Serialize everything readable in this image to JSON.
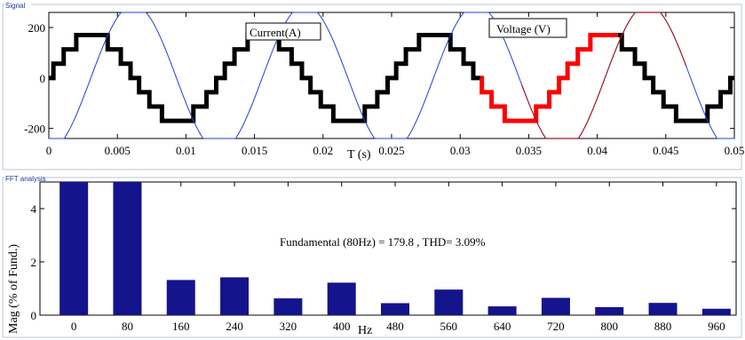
{
  "signal_panel": {
    "group_label": "Signal",
    "current_label": "Current(A)",
    "voltage_label": "Voltage (V)"
  },
  "fft_panel": {
    "group_label": "FFT analysis",
    "annotation": "Fundamental (80Hz) = 179.8 , THD= 3.09%"
  },
  "colors": {
    "current": "#1f3fd6",
    "voltage_black": "#000000",
    "voltage_red": "#ff0000",
    "voltage_dark_red": "#a0142c",
    "bars": "#14148c"
  },
  "chart_data": [
    {
      "type": "line",
      "xlabel": "T (s)",
      "ylabel": "",
      "xlim": [
        0,
        0.05
      ],
      "ylim": [
        -240,
        260
      ],
      "xticks": [
        "0",
        "0.005",
        "0.01",
        "0.015",
        "0.02",
        "0.025",
        "0.03",
        "0.035",
        "0.04",
        "0.045",
        "0.05"
      ],
      "xtick_values": [
        0,
        0.005,
        0.01,
        0.015,
        0.02,
        0.025,
        0.03,
        0.035,
        0.04,
        0.045,
        0.05
      ],
      "yticks": [
        "200",
        "0",
        "-200"
      ],
      "ytick_values": [
        200,
        0,
        -200
      ],
      "series": [
        {
          "name": "Current(A)",
          "kind": "sine",
          "amplitude": 290,
          "frequency_hz": 80,
          "phase_shift_s": 0.00306,
          "color": "#1f3fd6"
        },
        {
          "name": "Voltage (V)",
          "kind": "multilevel_staircase",
          "amplitude": 170,
          "levels": 7,
          "frequency_hz": 80,
          "highlight_range_s": [
            0.0315,
            0.0415
          ]
        }
      ]
    },
    {
      "type": "bar",
      "xlabel": "Hz",
      "ylabel": "Mag (% of Fund.)",
      "ylim": [
        0,
        5
      ],
      "yticks": [
        "0",
        "2",
        "4"
      ],
      "categories": [
        "0",
        "80",
        "160",
        "240",
        "320",
        "400",
        "480",
        "560",
        "640",
        "720",
        "800",
        "880",
        "960"
      ],
      "values": [
        5.0,
        5.0,
        1.32,
        1.42,
        0.63,
        1.22,
        0.45,
        0.96,
        0.33,
        0.65,
        0.3,
        0.46,
        0.24
      ]
    }
  ]
}
